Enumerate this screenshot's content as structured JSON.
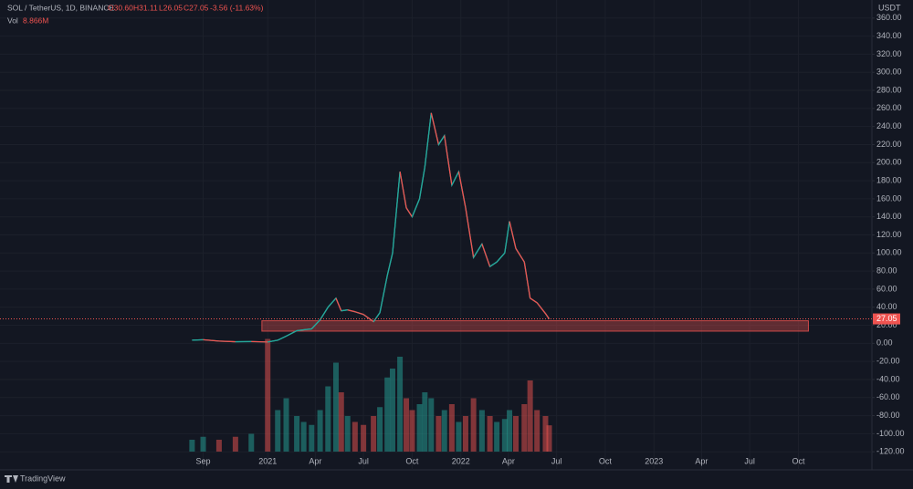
{
  "chart_data": {
    "type": "line",
    "header": {
      "symbol": "SOL / TetherUS, 1D, BINANCE",
      "ohlc": [
        "O30.60",
        "H31.11",
        "L26.05",
        "C27.05"
      ],
      "change": "-3.56 (-11.63%)",
      "volume_label": "Vol",
      "volume_value": "8.866M"
    },
    "axis_unit": "USDT",
    "brand": "TradingView",
    "x": [
      "2020-08-11",
      "2020-09-01",
      "2020-10-01",
      "2020-11-01",
      "2020-12-01",
      "2021-01-01",
      "2021-01-20",
      "2021-02-05",
      "2021-02-25",
      "2021-03-10",
      "2021-03-25",
      "2021-04-10",
      "2021-04-25",
      "2021-05-10",
      "2021-05-20",
      "2021-06-01",
      "2021-06-15",
      "2021-07-01",
      "2021-07-20",
      "2021-08-01",
      "2021-08-15",
      "2021-08-25",
      "2021-09-08",
      "2021-09-20",
      "2021-10-01",
      "2021-10-15",
      "2021-10-25",
      "2021-11-06",
      "2021-11-20",
      "2021-12-01",
      "2021-12-15",
      "2021-12-28",
      "2022-01-10",
      "2022-01-25",
      "2022-02-10",
      "2022-02-25",
      "2022-03-10",
      "2022-03-25",
      "2022-04-03",
      "2022-04-15",
      "2022-05-01",
      "2022-05-12",
      "2022-05-25",
      "2022-06-10",
      "2022-06-17"
    ],
    "series": [
      {
        "name": "SOL",
        "color": "#26a69a",
        "down_color": "#ef5350",
        "values": [
          3.5,
          4,
          2.5,
          1.8,
          2,
          1.5,
          3.5,
          8,
          14,
          15,
          16,
          26,
          40,
          50,
          36,
          37,
          35,
          32,
          24,
          34,
          75,
          100,
          190,
          150,
          140,
          160,
          195,
          255,
          220,
          230,
          175,
          190,
          150,
          95,
          110,
          85,
          90,
          100,
          135,
          105,
          90,
          50,
          45,
          33,
          27.05
        ]
      },
      {
        "name": "Vol",
        "axis": "volume",
        "values": [
          4,
          5,
          4,
          5,
          6,
          38,
          14,
          18,
          12,
          10,
          9,
          14,
          22,
          30,
          20,
          12,
          10,
          9,
          12,
          15,
          25,
          28,
          32,
          18,
          14,
          16,
          20,
          18,
          12,
          14,
          16,
          10,
          12,
          18,
          14,
          12,
          10,
          11,
          14,
          12,
          16,
          24,
          14,
          12,
          8.866
        ]
      }
    ],
    "volume_lim": [
      0,
      40
    ],
    "xlim": [
      "2019-08-14",
      "2024-02-17"
    ],
    "xticks": [
      {
        "value": "2020-09-01",
        "label": "Sep"
      },
      {
        "value": "2021-01-01",
        "label": "2021"
      },
      {
        "value": "2021-04-01",
        "label": "Apr"
      },
      {
        "value": "2021-07-01",
        "label": "Jul"
      },
      {
        "value": "2021-10-01",
        "label": "Oct"
      },
      {
        "value": "2022-01-01",
        "label": "2022"
      },
      {
        "value": "2022-04-01",
        "label": "Apr"
      },
      {
        "value": "2022-07-01",
        "label": "Jul"
      },
      {
        "value": "2022-10-01",
        "label": "Oct"
      },
      {
        "value": "2023-01-01",
        "label": "2023"
      },
      {
        "value": "2023-04-01",
        "label": "Apr"
      },
      {
        "value": "2023-07-01",
        "label": "Jul"
      },
      {
        "value": "2023-10-01",
        "label": "Oct"
      }
    ],
    "ylim": [
      -140,
      380
    ],
    "yticks": [
      {
        "value": 360,
        "label": "360.00"
      },
      {
        "value": 340,
        "label": "340.00"
      },
      {
        "value": 320,
        "label": "320.00"
      },
      {
        "value": 300,
        "label": "300.00"
      },
      {
        "value": 280,
        "label": "280.00"
      },
      {
        "value": 260,
        "label": "260.00"
      },
      {
        "value": 240,
        "label": "240.00"
      },
      {
        "value": 220,
        "label": "220.00"
      },
      {
        "value": 200,
        "label": "200.00"
      },
      {
        "value": 180,
        "label": "180.00"
      },
      {
        "value": 160,
        "label": "160.00"
      },
      {
        "value": 140,
        "label": "140.00"
      },
      {
        "value": 120,
        "label": "120.00"
      },
      {
        "value": 100,
        "label": "100.00"
      },
      {
        "value": 80,
        "label": "80.00"
      },
      {
        "value": 60,
        "label": "60.00"
      },
      {
        "value": 40,
        "label": "40.00"
      },
      {
        "value": 20,
        "label": "20.00"
      },
      {
        "value": 0,
        "label": "0.00"
      },
      {
        "value": -20,
        "label": "-20.00"
      },
      {
        "value": -40,
        "label": "-40.00"
      },
      {
        "value": -60,
        "label": "-60.00"
      },
      {
        "value": -80,
        "label": "-80.00"
      },
      {
        "value": -100,
        "label": "-100.00"
      },
      {
        "value": -120,
        "label": "-120.00"
      }
    ],
    "zone": {
      "from": "2020-12-21",
      "to": "2023-10-20",
      "low": 13.5,
      "high": 25,
      "color": "#ef5350"
    },
    "last_price": {
      "value": 27.05,
      "label": "27.05"
    },
    "grid": true
  }
}
